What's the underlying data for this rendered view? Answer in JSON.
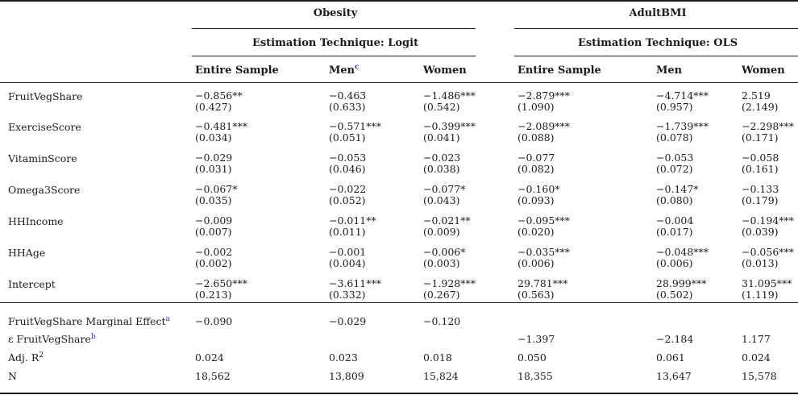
{
  "header": {
    "groups": [
      {
        "title": "Obesity",
        "technique": "Estimation Technique: Logit"
      },
      {
        "title": "AdultBMI",
        "technique": "Estimation Technique: OLS"
      }
    ],
    "columns": [
      {
        "label": "Entire Sample",
        "sup": ""
      },
      {
        "label": "Men",
        "sup": "c"
      },
      {
        "label": "Women",
        "sup": ""
      },
      {
        "label": "Entire Sample",
        "sup": ""
      },
      {
        "label": "Men",
        "sup": ""
      },
      {
        "label": "Women",
        "sup": ""
      }
    ]
  },
  "coef_rows": [
    {
      "label": "FruitVegShare",
      "cells": [
        {
          "est": "−0.856**",
          "se": "(0.427)"
        },
        {
          "est": "−0.463",
          "se": "(0.633)"
        },
        {
          "est": "−1.486***",
          "se": "(0.542)"
        },
        {
          "est": "−2.879***",
          "se": "(1.090)"
        },
        {
          "est": "−4.714***",
          "se": "(0.957)"
        },
        {
          "est": "2.519",
          "se": "(2.149)"
        }
      ]
    },
    {
      "label": "ExerciseScore",
      "cells": [
        {
          "est": "−0.481***",
          "se": "(0.034)"
        },
        {
          "est": "−0.571***",
          "se": "(0.051)"
        },
        {
          "est": "−0.399***",
          "se": "(0.041)"
        },
        {
          "est": "−2.089***",
          "se": "(0.088)"
        },
        {
          "est": "−1.739***",
          "se": "(0.078)"
        },
        {
          "est": "−2.298***",
          "se": "(0.171)"
        }
      ]
    },
    {
      "label": "VitaminScore",
      "cells": [
        {
          "est": "−0.029",
          "se": "(0.031)"
        },
        {
          "est": "−0.053",
          "se": "(0.046)"
        },
        {
          "est": "−0.023",
          "se": "(0.038)"
        },
        {
          "est": "−0.077",
          "se": "(0.082)"
        },
        {
          "est": "−0.053",
          "se": "(0.072)"
        },
        {
          "est": "−0.058",
          "se": "(0.161)"
        }
      ]
    },
    {
      "label": "Omega3Score",
      "cells": [
        {
          "est": "−0.067*",
          "se": "(0.035)"
        },
        {
          "est": "−0.022",
          "se": "(0.052)"
        },
        {
          "est": "−0.077*",
          "se": "(0.043)"
        },
        {
          "est": "−0.160*",
          "se": "(0.093)"
        },
        {
          "est": "−0.147*",
          "se": "(0.080)"
        },
        {
          "est": "−0.133",
          "se": "(0.179)"
        }
      ]
    },
    {
      "label": "HHIncome",
      "cells": [
        {
          "est": "−0.009",
          "se": "(0.007)"
        },
        {
          "est": "−0.011**",
          "se": "(0.011)"
        },
        {
          "est": "−0.021**",
          "se": "(0.009)"
        },
        {
          "est": "−0.095***",
          "se": "(0.020)"
        },
        {
          "est": "−0.004",
          "se": "(0.017)"
        },
        {
          "est": "−0.194***",
          "se": "(0.039)"
        }
      ]
    },
    {
      "label": "HHAge",
      "cells": [
        {
          "est": "−0.002",
          "se": "(0.002)"
        },
        {
          "est": "−0.001",
          "se": "(0.004)"
        },
        {
          "est": "−0.006*",
          "se": "(0.003)"
        },
        {
          "est": "−0.035***",
          "se": "(0.006)"
        },
        {
          "est": "−0.048***",
          "se": "(0.006)"
        },
        {
          "est": "−0.056***",
          "se": "(0.013)"
        }
      ]
    },
    {
      "label": "Intercept",
      "cells": [
        {
          "est": "−2.650***",
          "se": "(0.213)"
        },
        {
          "est": "−3.611***",
          "se": "(0.332)"
        },
        {
          "est": "−1.928***",
          "se": "(0.267)"
        },
        {
          "est": "29.781***",
          "se": "(0.563)"
        },
        {
          "est": "28.999***",
          "se": "(0.502)"
        },
        {
          "est": "31.095***",
          "se": "(1.119)"
        }
      ]
    }
  ],
  "stat_rows": [
    {
      "label": "FruitVegShare Marginal Effect",
      "sup": "a",
      "sup_style": "link",
      "values": [
        "−0.090",
        "−0.029",
        "−0.120",
        "",
        "",
        ""
      ]
    },
    {
      "label": "ε FruitVegShare",
      "sup": "b",
      "sup_style": "link",
      "values": [
        "",
        "",
        "",
        "−1.397",
        "−2.184",
        "1.177"
      ]
    },
    {
      "label": "Adj. R",
      "sup": "2",
      "sup_style": "plain",
      "values": [
        "0.024",
        "0.023",
        "0.018",
        "0.050",
        "0.061",
        "0.024"
      ]
    },
    {
      "label": "N",
      "sup": "",
      "sup_style": "plain",
      "values": [
        "18,562",
        "13,809",
        "15,824",
        "18,355",
        "13,647",
        "15,578"
      ]
    }
  ],
  "colors": {
    "text": "#1b1b1b",
    "rule": "#1b1b1b",
    "footnote_link": "#2433d6"
  }
}
